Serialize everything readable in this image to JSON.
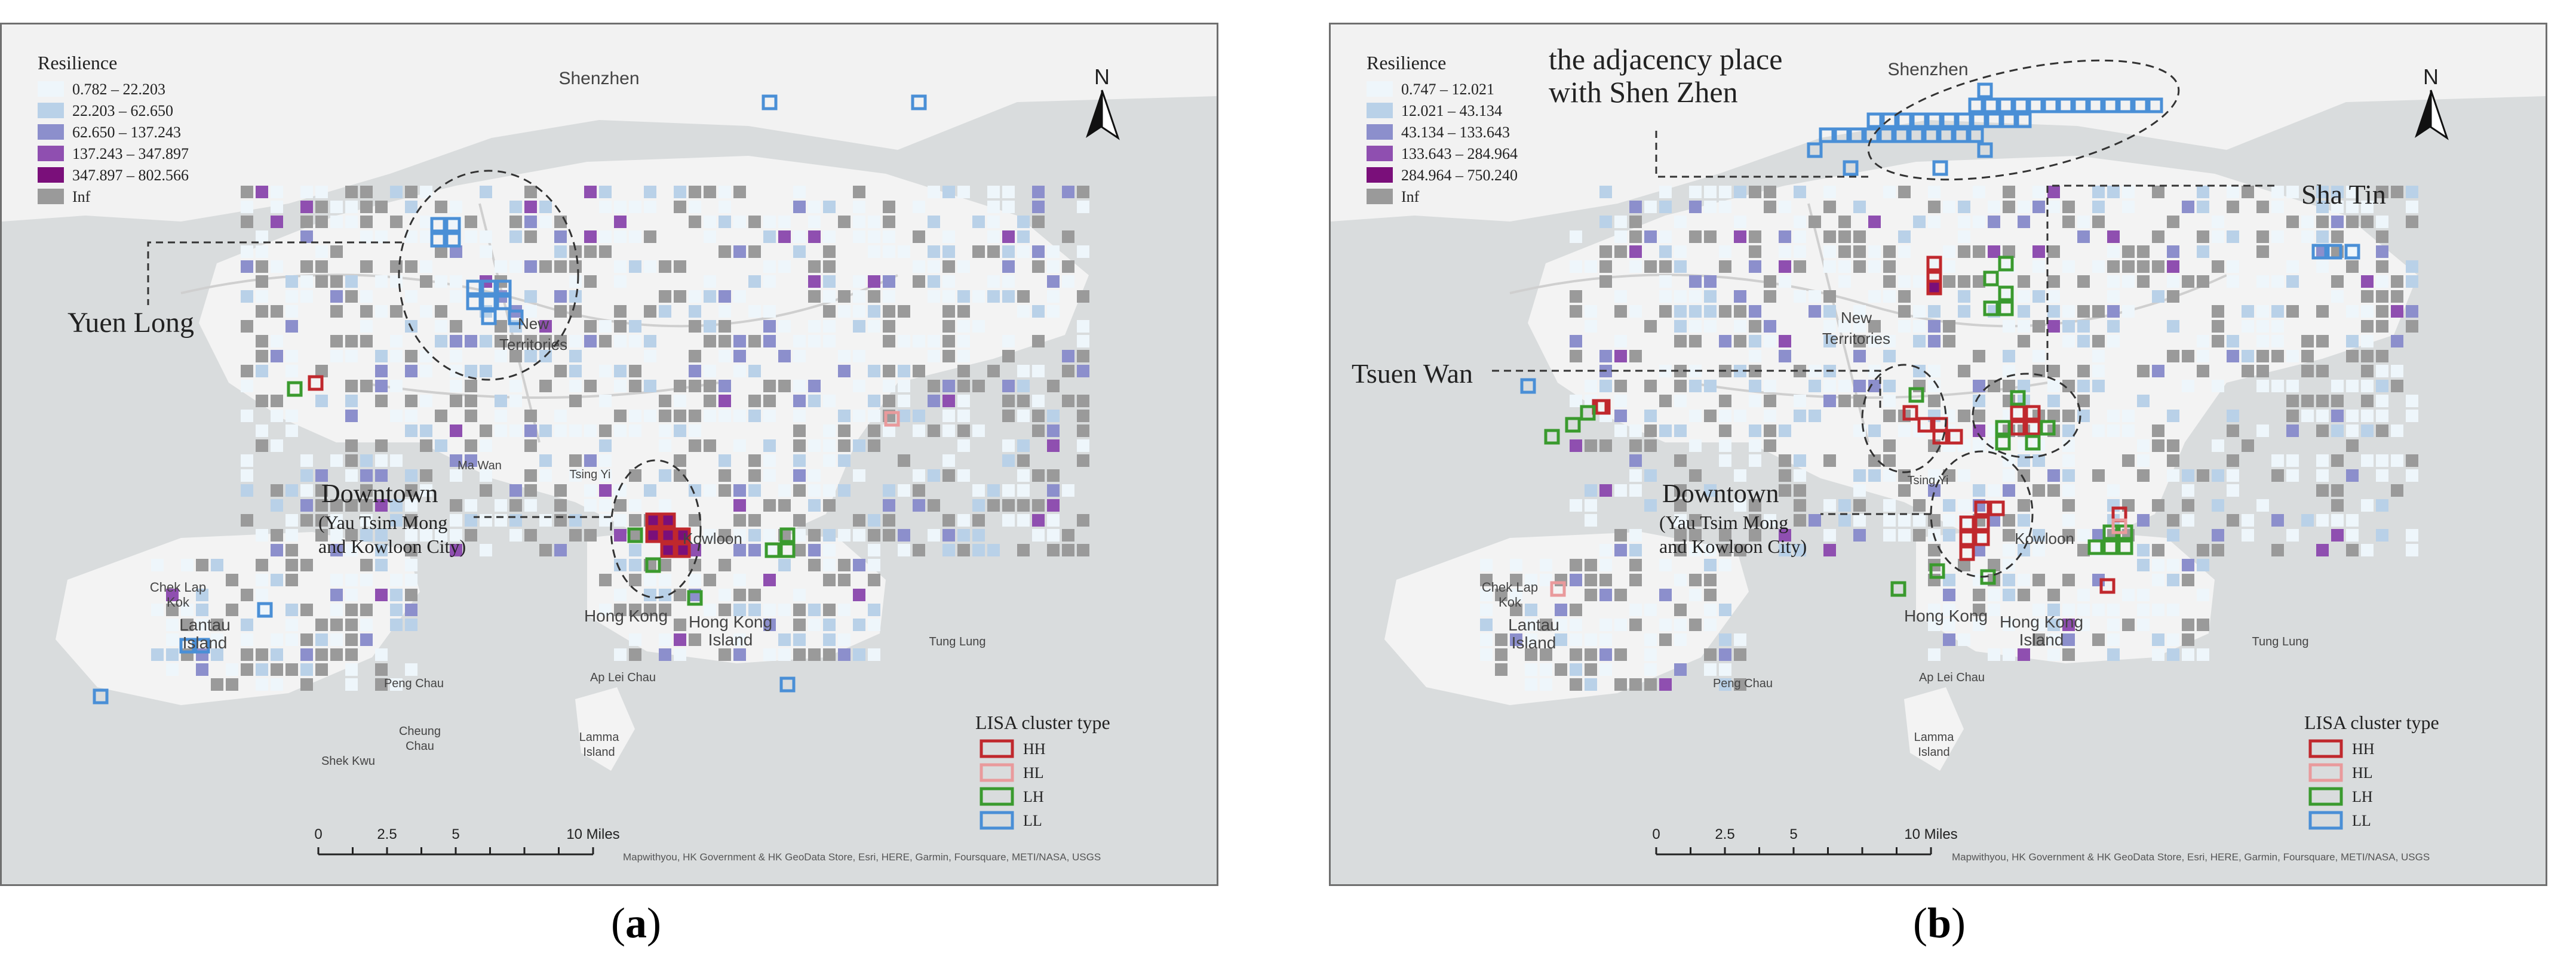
{
  "panels": [
    {
      "id": "a",
      "caption_letter": "a",
      "resilience_title": "Resilience",
      "resilience_classes": [
        {
          "label": "0.782 – 22.203",
          "color": "#eef6fb"
        },
        {
          "label": "22.203 – 62.650",
          "color": "#b9d1e8"
        },
        {
          "label": "62.650 – 137.243",
          "color": "#8c8fcc"
        },
        {
          "label": "137.243 – 347.897",
          "color": "#8f4fb0"
        },
        {
          "label": "347.897 – 802.566",
          "color": "#7a0f7a"
        },
        {
          "label": "Inf",
          "color": "#9a9a9a"
        }
      ],
      "lisa_title": "LISA cluster type",
      "lisa_classes": [
        {
          "label": "HH",
          "color": "#c0282d"
        },
        {
          "label": "HL",
          "color": "#e99a9c"
        },
        {
          "label": "LH",
          "color": "#3a9a2e"
        },
        {
          "label": "LL",
          "color": "#4a8fd6"
        }
      ],
      "scale": {
        "ticks": [
          "0",
          "2.5",
          "5",
          "10 Miles"
        ]
      },
      "north": "N",
      "attribution": "Mapwithyou, HK Government & HK GeoData Store, Esri, HERE, Garmin, Foursquare, METI/NASA, USGS",
      "place_labels": [
        {
          "text": "Shenzhen"
        },
        {
          "text": "New"
        },
        {
          "text": "Territories"
        },
        {
          "text": "Kowloon"
        },
        {
          "text": "Hong Kong"
        },
        {
          "text": "Hong Kong"
        },
        {
          "text": "Island"
        },
        {
          "text": "Lantau"
        },
        {
          "text": "Island"
        },
        {
          "text": "Chek Lap"
        },
        {
          "text": "Kok"
        },
        {
          "text": "Ma Wan"
        },
        {
          "text": "Tsing Yi"
        },
        {
          "text": "Ap Lei Chau"
        },
        {
          "text": "Tung Lung"
        },
        {
          "text": "Lamma"
        },
        {
          "text": "Island"
        },
        {
          "text": "Peng Chau"
        },
        {
          "text": "Cheung"
        },
        {
          "text": "Chau"
        },
        {
          "text": "Shek Kwu"
        }
      ],
      "annotations": [
        {
          "text": "Yuen Long"
        },
        {
          "text": "Downtown"
        },
        {
          "text": "(Yau Tsim Mong"
        },
        {
          "text": "and Kowloon City)"
        }
      ]
    },
    {
      "id": "b",
      "caption_letter": "b",
      "resilience_title": "Resilience",
      "resilience_classes": [
        {
          "label": "0.747 – 12.021",
          "color": "#eef6fb"
        },
        {
          "label": "12.021 – 43.134",
          "color": "#b9d1e8"
        },
        {
          "label": "43.134 – 133.643",
          "color": "#8c8fcc"
        },
        {
          "label": "133.643 – 284.964",
          "color": "#8f4fb0"
        },
        {
          "label": "284.964 – 750.240",
          "color": "#7a0f7a"
        },
        {
          "label": "Inf",
          "color": "#9a9a9a"
        }
      ],
      "lisa_title": "LISA cluster type",
      "lisa_classes": [
        {
          "label": "HH",
          "color": "#c0282d"
        },
        {
          "label": "HL",
          "color": "#e99a9c"
        },
        {
          "label": "LH",
          "color": "#3a9a2e"
        },
        {
          "label": "LL",
          "color": "#4a8fd6"
        }
      ],
      "scale": {
        "ticks": [
          "0",
          "2.5",
          "5",
          "10 Miles"
        ]
      },
      "north": "N",
      "attribution": "Mapwithyou, HK Government & HK GeoData Store, Esri, HERE, Garmin, Foursquare, METI/NASA, USGS",
      "place_labels": [
        {
          "text": "Shenzhen"
        },
        {
          "text": "New"
        },
        {
          "text": "Territories"
        },
        {
          "text": "Kowloon"
        },
        {
          "text": "Hong Kong"
        },
        {
          "text": "Hong Kong"
        },
        {
          "text": "Island"
        },
        {
          "text": "Lantau"
        },
        {
          "text": "Island"
        },
        {
          "text": "Chek Lap"
        },
        {
          "text": "Kok"
        },
        {
          "text": "Tsing Yi"
        },
        {
          "text": "Ap Lei Chau"
        },
        {
          "text": "Tung Lung"
        },
        {
          "text": "Lamma"
        },
        {
          "text": "Island"
        },
        {
          "text": "Peng Chau"
        }
      ],
      "annotations": [
        {
          "text": "the adjacency place"
        },
        {
          "text": "with Shen Zhen"
        },
        {
          "text": "Sha Tin"
        },
        {
          "text": "Tsuen Wan"
        },
        {
          "text": "Downtown"
        },
        {
          "text": "(Yau Tsim Mong"
        },
        {
          "text": "and Kowloon City)"
        }
      ]
    }
  ]
}
